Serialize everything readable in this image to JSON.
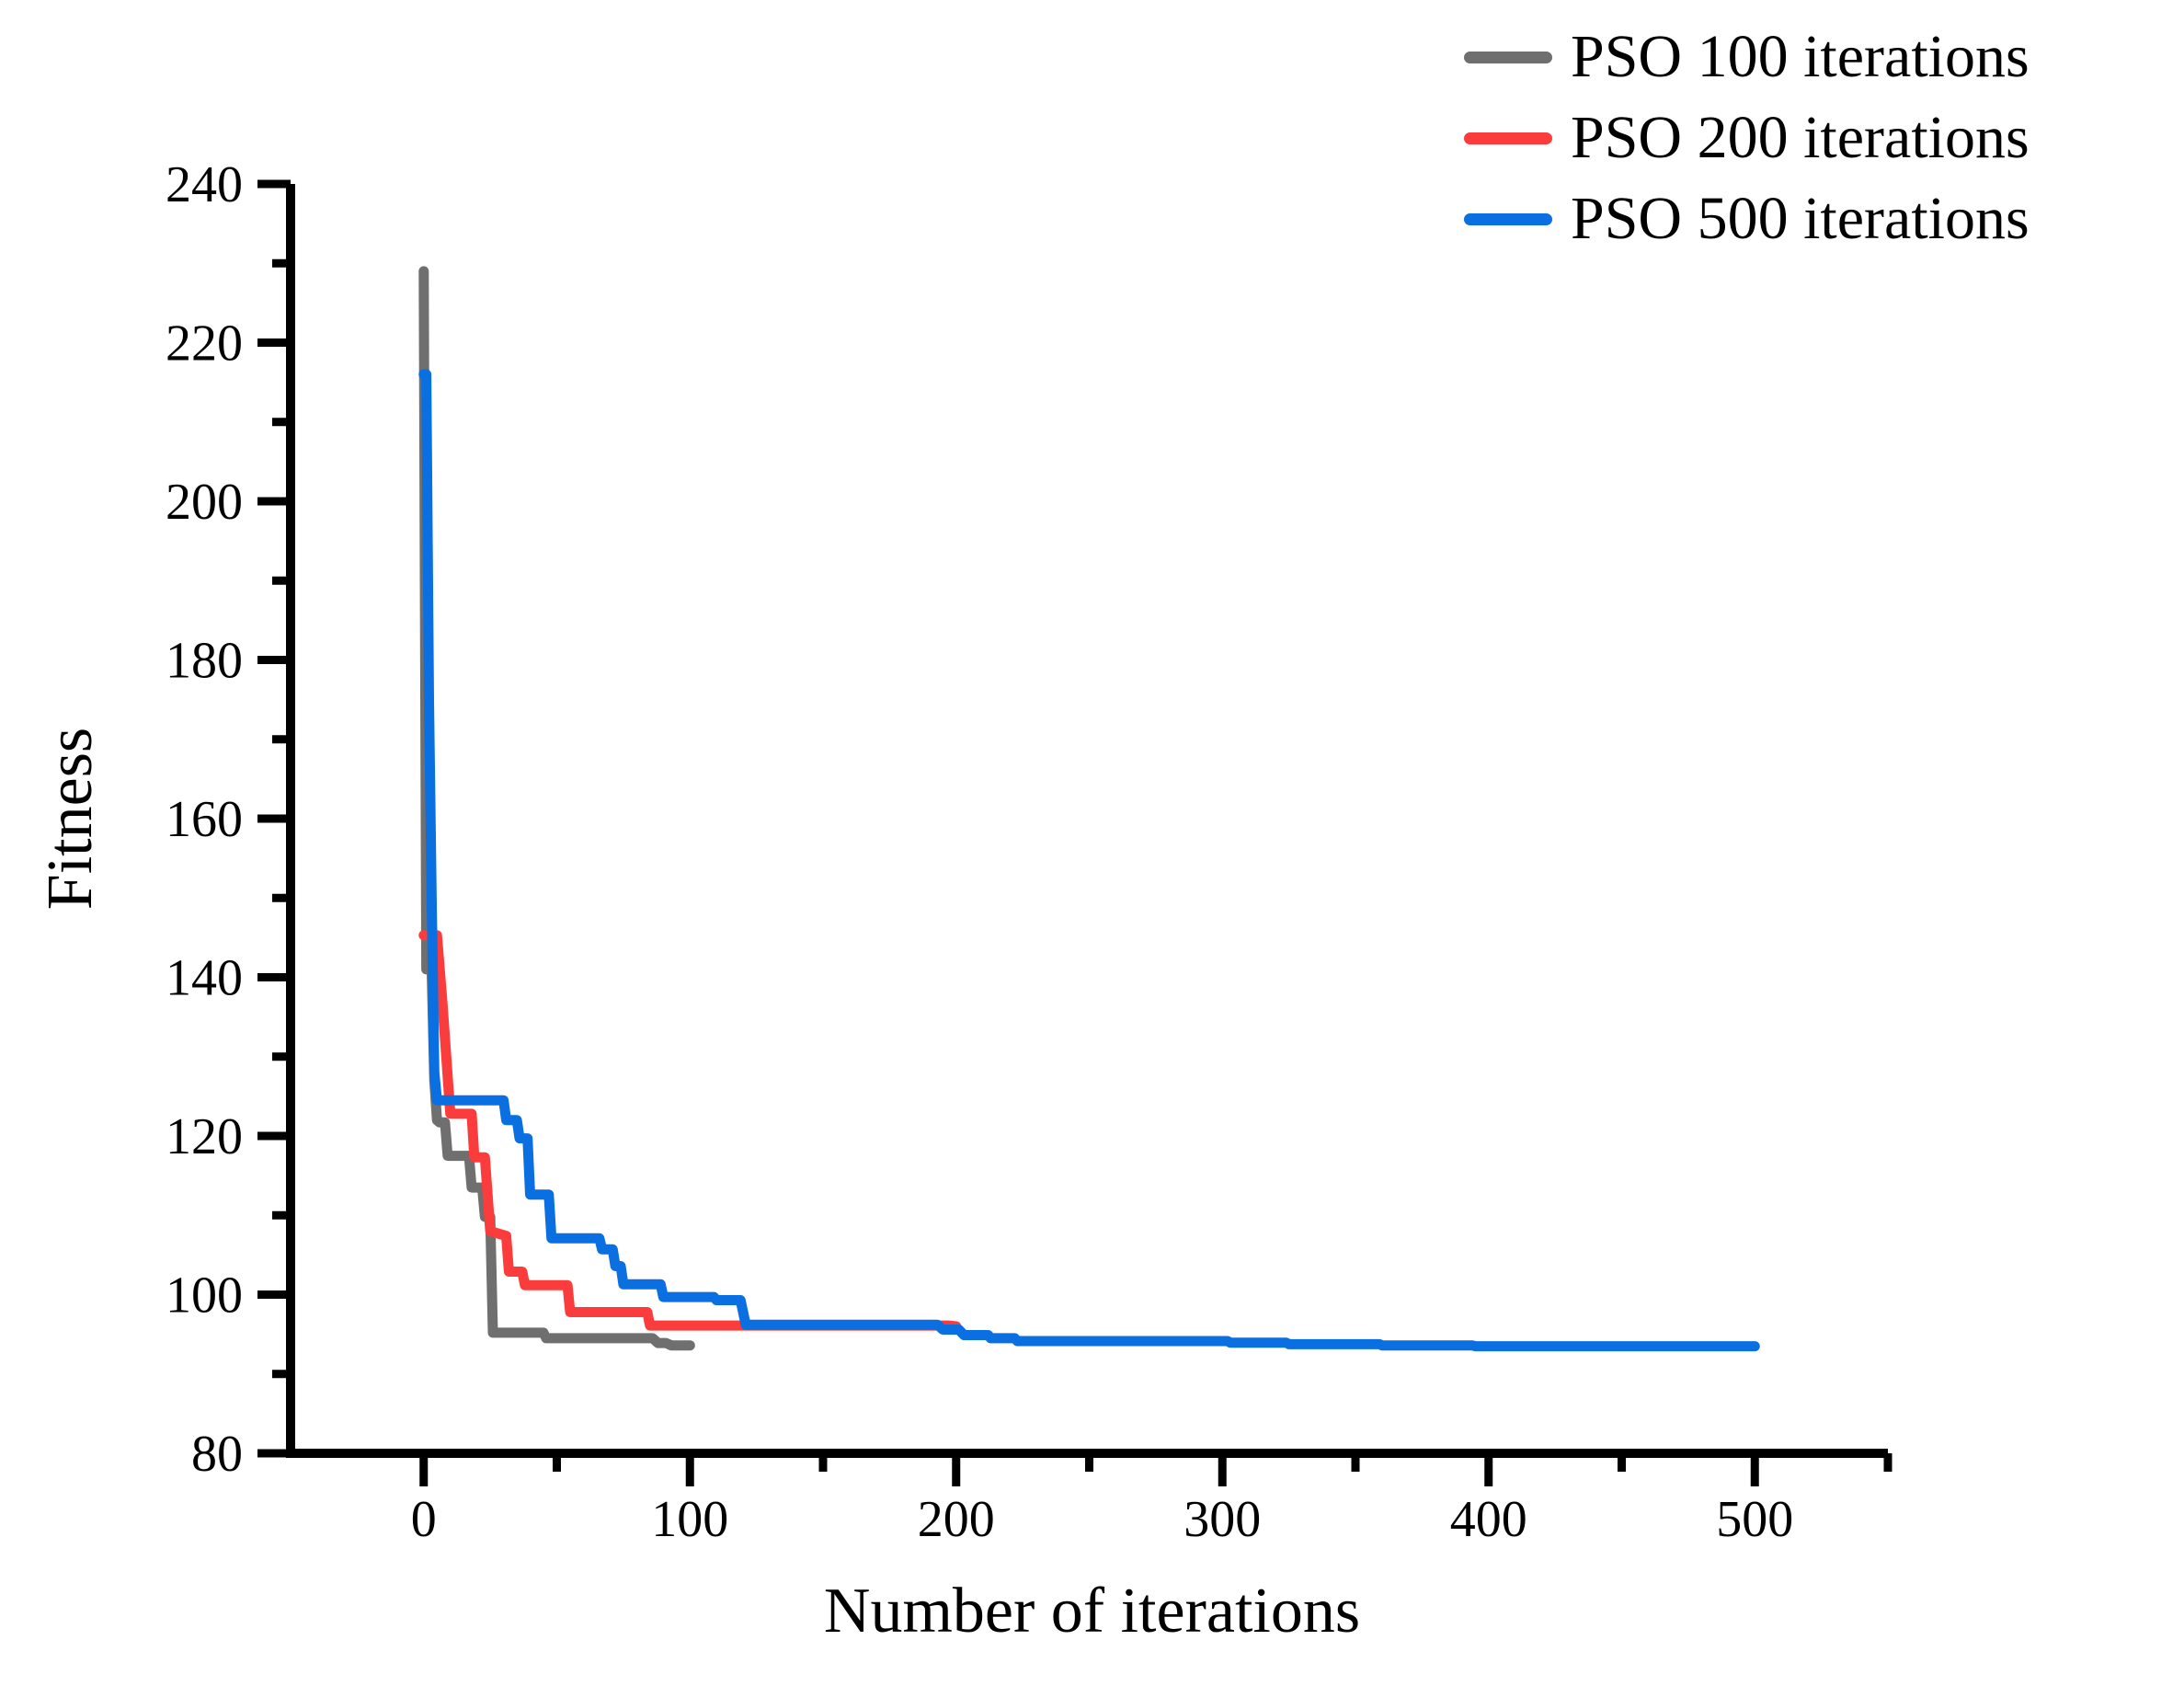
{
  "figure": {
    "background": "#ffffff",
    "axis_color": "#000000"
  },
  "chart_data": {
    "type": "line",
    "title": "",
    "xlabel": "Number of iterations",
    "ylabel": "Fitness",
    "xlim": [
      -50,
      550
    ],
    "ylim": [
      80,
      240
    ],
    "x_ticks": [
      0,
      100,
      200,
      300,
      400,
      500
    ],
    "x_minor_ticks": [
      50,
      150,
      250,
      350,
      450,
      550
    ],
    "y_ticks": [
      80,
      100,
      120,
      140,
      160,
      180,
      200,
      220,
      240
    ],
    "y_minor_ticks": [
      90,
      110,
      130,
      150,
      170,
      190,
      210,
      230
    ],
    "grid": false,
    "legend_position": "top-right",
    "series": [
      {
        "name": "PSO 100 iterations",
        "color": "#6f6f6f",
        "points": [
          [
            0,
            229
          ],
          [
            1,
            141
          ],
          [
            3,
            141
          ],
          [
            4,
            127
          ],
          [
            5,
            122
          ],
          [
            6,
            121.7
          ],
          [
            8,
            121.7
          ],
          [
            9,
            117.5
          ],
          [
            17,
            117.5
          ],
          [
            18,
            113.5
          ],
          [
            22,
            113.5
          ],
          [
            23,
            109.8
          ],
          [
            25,
            109.8
          ],
          [
            26,
            95.2
          ],
          [
            45,
            95.2
          ],
          [
            46,
            94.5
          ],
          [
            86,
            94.5
          ],
          [
            88,
            93.9
          ],
          [
            91,
            93.9
          ],
          [
            93,
            93.6
          ],
          [
            100,
            93.6
          ]
        ]
      },
      {
        "name": "PSO 200 iterations",
        "color": "#fa3c3c",
        "points": [
          [
            0,
            145.3
          ],
          [
            5,
            145.3
          ],
          [
            7,
            137
          ],
          [
            10,
            122.8
          ],
          [
            18,
            122.8
          ],
          [
            19,
            117.3
          ],
          [
            23,
            117.3
          ],
          [
            25,
            108
          ],
          [
            31,
            107.4
          ],
          [
            32,
            102.9
          ],
          [
            37,
            102.9
          ],
          [
            38,
            101.2
          ],
          [
            54,
            101.2
          ],
          [
            55,
            97.8
          ],
          [
            84,
            97.8
          ],
          [
            85,
            96.1
          ],
          [
            197,
            96.1
          ],
          [
            200,
            96.0
          ]
        ]
      },
      {
        "name": "PSO 500 iterations",
        "color": "#0a6fe0",
        "points": [
          [
            0,
            216
          ],
          [
            1,
            216
          ],
          [
            2,
            175
          ],
          [
            3,
            150
          ],
          [
            4,
            128
          ],
          [
            5,
            124.5
          ],
          [
            30,
            124.5
          ],
          [
            31,
            122.0
          ],
          [
            35,
            122.0
          ],
          [
            36,
            119.7
          ],
          [
            39,
            119.7
          ],
          [
            40,
            112.6
          ],
          [
            47,
            112.6
          ],
          [
            48,
            107.1
          ],
          [
            66,
            107.1
          ],
          [
            67,
            105.7
          ],
          [
            71,
            105.7
          ],
          [
            72,
            103.6
          ],
          [
            74,
            103.6
          ],
          [
            75,
            101.3
          ],
          [
            89,
            101.3
          ],
          [
            90,
            99.7
          ],
          [
            109,
            99.7
          ],
          [
            110,
            99.3
          ],
          [
            119,
            99.3
          ],
          [
            121,
            96.2
          ],
          [
            193,
            96.2
          ],
          [
            195,
            95.6
          ],
          [
            201,
            95.6
          ],
          [
            203,
            94.9
          ],
          [
            212,
            94.9
          ],
          [
            213,
            94.5
          ],
          [
            222,
            94.5
          ],
          [
            223,
            94.15
          ],
          [
            302,
            94.15
          ],
          [
            303,
            93.95
          ],
          [
            324,
            93.95
          ],
          [
            325,
            93.75
          ],
          [
            359,
            93.75
          ],
          [
            360,
            93.6
          ],
          [
            394,
            93.6
          ],
          [
            395,
            93.5
          ],
          [
            500,
            93.5
          ]
        ]
      }
    ]
  }
}
